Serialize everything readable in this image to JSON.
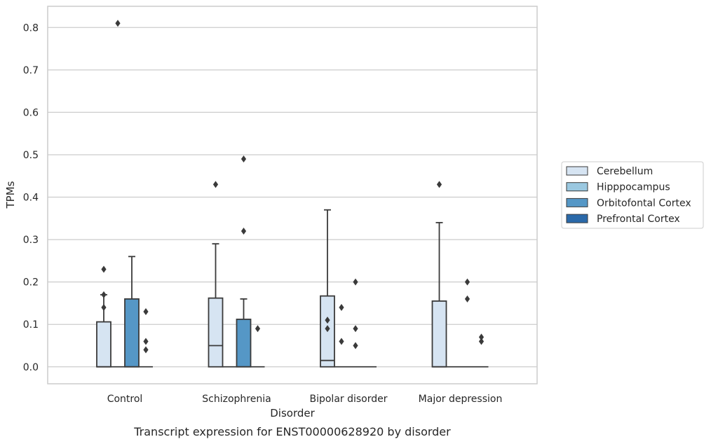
{
  "caption": "Transcript expression for ENST00000628920 by disorder",
  "chart_data": {
    "type": "box",
    "xlabel": "Disorder",
    "ylabel": "TPMs",
    "ylim": [
      -0.04,
      0.85
    ],
    "yticks": [
      "0.0",
      "0.1",
      "0.2",
      "0.3",
      "0.4",
      "0.5",
      "0.6",
      "0.7",
      "0.8"
    ],
    "grid": "horizontal",
    "legend_position": "right",
    "categories": [
      "Control",
      "Schizophrenia",
      "Bipolar disorder",
      "Major depression"
    ],
    "series": [
      {
        "name": "Cerebellum",
        "color": "#d6e4f2",
        "boxes": [
          {
            "whislo": 0,
            "q1": 0,
            "med": 0,
            "q3": 0.106,
            "whishi": 0.17,
            "fliers": [
              0.23,
              0.17,
              0.14
            ]
          },
          {
            "whislo": 0,
            "q1": 0,
            "med": 0.05,
            "q3": 0.162,
            "whishi": 0.29,
            "fliers": [
              0.43
            ]
          },
          {
            "whislo": 0,
            "q1": 0,
            "med": 0.015,
            "q3": 0.167,
            "whishi": 0.37,
            "fliers": [
              0.11,
              0.09
            ]
          },
          {
            "whislo": 0,
            "q1": 0,
            "med": 0,
            "q3": 0.155,
            "whishi": 0.34,
            "fliers": [
              0.43
            ]
          }
        ]
      },
      {
        "name": "Hipppocampus",
        "color": "#9ac8e0",
        "boxes": [
          {
            "whislo": 0,
            "q1": 0,
            "med": 0,
            "q3": 0,
            "whishi": 0,
            "fliers": [
              0.81
            ]
          },
          {
            "whislo": 0,
            "q1": 0,
            "med": 0,
            "q3": 0,
            "whishi": 0,
            "fliers": []
          },
          {
            "whislo": 0,
            "q1": 0,
            "med": 0,
            "q3": 0,
            "whishi": 0,
            "fliers": [
              0.14,
              0.06
            ]
          },
          {
            "whislo": 0,
            "q1": 0,
            "med": 0,
            "q3": 0,
            "whishi": 0,
            "fliers": []
          }
        ]
      },
      {
        "name": "Orbitofontal Cortex",
        "color": "#5597c6",
        "boxes": [
          {
            "whislo": 0,
            "q1": 0,
            "med": 0,
            "q3": 0.16,
            "whishi": 0.26,
            "fliers": []
          },
          {
            "whislo": 0,
            "q1": 0,
            "med": 0,
            "q3": 0.112,
            "whishi": 0.16,
            "fliers": [
              0.49,
              0.32
            ]
          },
          {
            "whislo": 0,
            "q1": 0,
            "med": 0,
            "q3": 0,
            "whishi": 0,
            "fliers": [
              0.2,
              0.09,
              0.05
            ]
          },
          {
            "whislo": 0,
            "q1": 0,
            "med": 0,
            "q3": 0,
            "whishi": 0,
            "fliers": [
              0.2,
              0.16
            ]
          }
        ]
      },
      {
        "name": "Prefrontal Cortex",
        "color": "#2a69a9",
        "boxes": [
          {
            "whislo": 0,
            "q1": 0,
            "med": 0,
            "q3": 0,
            "whishi": 0,
            "fliers": [
              0.13,
              0.06,
              0.04
            ]
          },
          {
            "whislo": 0,
            "q1": 0,
            "med": 0,
            "q3": 0,
            "whishi": 0,
            "fliers": [
              0.09
            ]
          },
          {
            "whislo": 0,
            "q1": 0,
            "med": 0,
            "q3": 0,
            "whishi": 0,
            "fliers": []
          },
          {
            "whislo": 0,
            "q1": 0,
            "med": 0,
            "q3": 0,
            "whishi": 0,
            "fliers": [
              0.07,
              0.06
            ]
          }
        ]
      }
    ]
  }
}
